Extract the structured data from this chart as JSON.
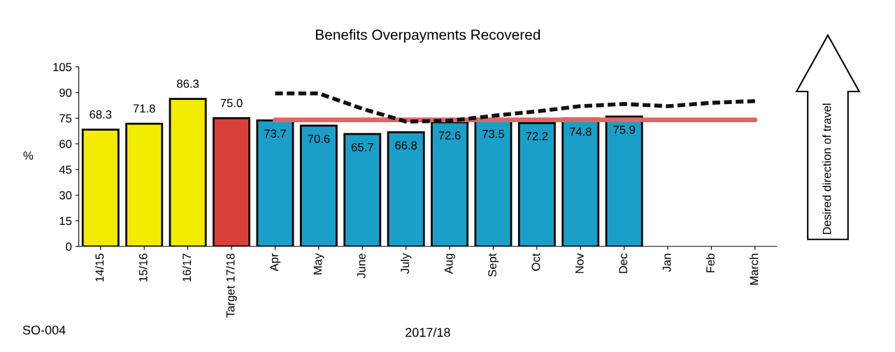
{
  "chart_data": {
    "type": "bar",
    "title": "Benefits Overpayments Recovered",
    "xlabel": "2017/18",
    "ylabel": "%",
    "categories": [
      "14/15",
      "15/16",
      "16/17",
      "Target 17/18",
      "Apr",
      "May",
      "June",
      "July",
      "Aug",
      "Sept",
      "Oct",
      "Nov",
      "Dec",
      "Jan",
      "Feb",
      "March"
    ],
    "series": [
      {
        "colors": [
          "#f2ec00",
          "#f2ec00",
          "#f2ec00",
          "#d9403a",
          "#1aa0c8",
          "#1aa0c8",
          "#1aa0c8",
          "#1aa0c8",
          "#1aa0c8",
          "#1aa0c8",
          "#1aa0c8",
          "#1aa0c8",
          "#1aa0c8",
          "#1aa0c8",
          "#1aa0c8",
          "#1aa0c8"
        ],
        "values": [
          68.3,
          71.8,
          86.3,
          75.0,
          73.7,
          70.6,
          65.7,
          66.8,
          72.6,
          73.5,
          72.2,
          74.8,
          75.9,
          null,
          null,
          null
        ],
        "value_labels": [
          "68.3",
          "71.8",
          "86.3",
          "75.0",
          "73.7",
          "70.6",
          "65.7",
          "66.8",
          "72.6",
          "73.5",
          "72.2",
          "74.8",
          "75.9",
          null,
          null,
          null
        ]
      },
      {
        "type": "line",
        "color": "#e06666",
        "values": [
          null,
          null,
          null,
          null,
          74,
          74,
          74,
          74,
          74,
          74,
          74,
          74,
          74,
          74,
          74,
          74
        ]
      },
      {
        "type": "line",
        "color": "#111111",
        "line_style": "dashed",
        "values": [
          null,
          null,
          null,
          null,
          89.5,
          89.5,
          80.5,
          73,
          73.5,
          76.4,
          79,
          82,
          83.3,
          82,
          84,
          85
        ]
      }
    ],
    "ylim": [
      0,
      105
    ],
    "yticks": [
      0,
      15,
      30,
      45,
      60,
      75,
      90,
      105
    ],
    "grid": false,
    "legend": false,
    "annotations": [
      "SO-004",
      "Desired direction of travel"
    ]
  }
}
